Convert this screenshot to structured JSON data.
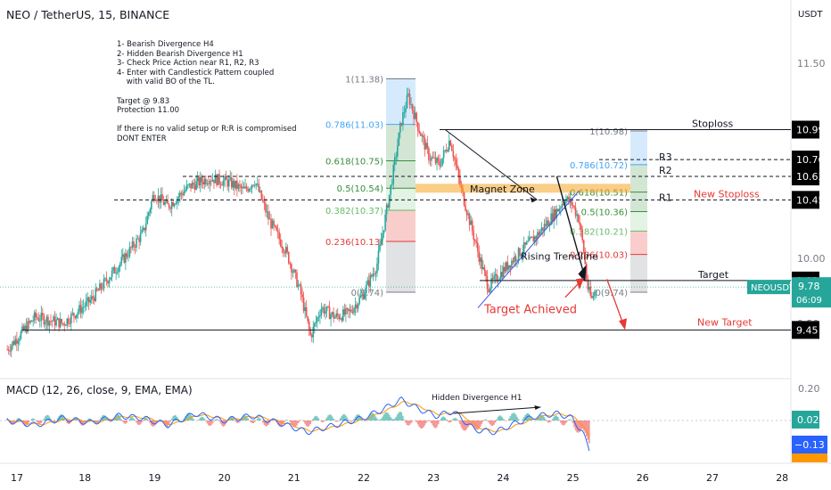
{
  "header": {
    "symbol_title": "NEO / TetherUS, 15, BINANCE",
    "currency": "USDT"
  },
  "notes": [
    "1- Bearish Divergence H4",
    "2- Hidden Bearish Divergence H1",
    "3- Check Price Action near R1, R2, R3",
    "4- Enter with Candlestick Pattern coupled",
    "    with valid BO of the TL.",
    "",
    "Target @ 9.83",
    "Protection 11.00",
    "",
    "If there is no valid setup or R:R is compromised",
    "DONT ENTER"
  ],
  "colors": {
    "up": "#26a69a",
    "down": "#ef5350",
    "fib_blue": "#42a5f5",
    "fib_green": "#388e3c",
    "fib_red": "#e53935",
    "magnet": "#f5a623",
    "trend_blue": "#3f51e5",
    "annotation_red": "#e53935"
  },
  "price_axis": {
    "labels": [
      "11.50",
      "10.00",
      "9.50"
    ],
    "boxes": [
      {
        "label": "10.99",
        "style": "dark"
      },
      {
        "label": "10.76",
        "style": "dark"
      },
      {
        "label": "10.63",
        "style": "dark"
      },
      {
        "label": "10.45",
        "style": "dark"
      },
      {
        "label": "9.83",
        "style": "dark"
      },
      {
        "label": "9.45",
        "style": "dark"
      }
    ],
    "current": {
      "symbol": "NEOUSDT",
      "price": "9.78",
      "countdown": "06:09"
    }
  },
  "levels": [
    {
      "name": "Stoploss",
      "value": 10.99,
      "style": "solid",
      "color": "dark"
    },
    {
      "name": "R3",
      "value": 10.76,
      "style": "dashed",
      "color": "dark"
    },
    {
      "name": "R2",
      "value": 10.63,
      "style": "dashed",
      "color": "dark"
    },
    {
      "name": "R1",
      "value": 10.45,
      "style": "dashed",
      "color": "dark"
    },
    {
      "name": "New Stoploss",
      "value": 10.45,
      "style": "label",
      "color": "red"
    },
    {
      "name": "Target",
      "value": 9.83,
      "style": "solid",
      "color": "dark"
    },
    {
      "name": "New Target",
      "value": 9.45,
      "style": "solid",
      "color": "red"
    }
  ],
  "fib_left": {
    "levels": [
      {
        "label": "1(11.38)",
        "value": 11.38,
        "color": "gray"
      },
      {
        "label": "0.786(11.03)",
        "value": 11.03,
        "color": "blue"
      },
      {
        "label": "0.618(10.75)",
        "value": 10.75,
        "color": "green"
      },
      {
        "label": "0.5(10.54)",
        "value": 10.54,
        "color": "green"
      },
      {
        "label": "0.382(10.37)",
        "value": 10.37,
        "color": "lightgreen"
      },
      {
        "label": "0.236(10.13)",
        "value": 10.13,
        "color": "red"
      },
      {
        "label": "0(9.74)",
        "value": 9.74,
        "color": "gray"
      }
    ]
  },
  "fib_right": {
    "levels": [
      {
        "label": "1(10.98)",
        "value": 10.98,
        "color": "gray"
      },
      {
        "label": "0.786(10.72)",
        "value": 10.72,
        "color": "blue"
      },
      {
        "label": "0.618(10.51)",
        "value": 10.51,
        "color": "green"
      },
      {
        "label": "0.5(10.36)",
        "value": 10.36,
        "color": "green"
      },
      {
        "label": "0.382(10.21)",
        "value": 10.21,
        "color": "lightgreen"
      },
      {
        "label": "0.236(10.03)",
        "value": 10.03,
        "color": "red"
      },
      {
        "label": "0(9.74)",
        "value": 9.74,
        "color": "gray"
      }
    ]
  },
  "annotations": {
    "magnet_zone": "Magnet Zone",
    "rising_trendline": "Rising Trendline",
    "target_achieved": "Target Achieved",
    "hidden_divergence": "Hidden Divergence H1"
  },
  "macd": {
    "title": "MACD (12, 26, close, 9, EMA, EMA)",
    "axis_label": "0.20",
    "box_hist": "0.02",
    "box_macd": "−0.13"
  },
  "chart_data": {
    "type": "candlestick",
    "title": "NEO / TetherUS, 15, BINANCE",
    "x_tick_labels": [
      "17",
      "18",
      "19",
      "20",
      "21",
      "22",
      "23",
      "24",
      "25",
      "26",
      "27",
      "28"
    ],
    "ylim": [
      9.3,
      11.6
    ],
    "price_path": [
      [
        16.9,
        9.3
      ],
      [
        17.3,
        9.55
      ],
      [
        17.7,
        9.5
      ],
      [
        18.1,
        9.68
      ],
      [
        18.5,
        9.95
      ],
      [
        18.85,
        10.2
      ],
      [
        19.0,
        10.5
      ],
      [
        19.2,
        10.4
      ],
      [
        19.5,
        10.55
      ],
      [
        19.8,
        10.62
      ],
      [
        20.1,
        10.58
      ],
      [
        20.3,
        10.52
      ],
      [
        20.45,
        10.6
      ],
      [
        20.65,
        10.3
      ],
      [
        20.9,
        10.05
      ],
      [
        21.1,
        9.75
      ],
      [
        21.25,
        9.4
      ],
      [
        21.4,
        9.62
      ],
      [
        21.6,
        9.55
      ],
      [
        21.8,
        9.58
      ],
      [
        22.0,
        9.72
      ],
      [
        22.2,
        9.95
      ],
      [
        22.4,
        10.55
      ],
      [
        22.55,
        11.05
      ],
      [
        22.65,
        11.25
      ],
      [
        22.8,
        11.0
      ],
      [
        22.95,
        10.78
      ],
      [
        23.1,
        10.72
      ],
      [
        23.25,
        10.92
      ],
      [
        23.4,
        10.55
      ],
      [
        23.55,
        10.25
      ],
      [
        23.7,
        9.95
      ],
      [
        23.8,
        9.78
      ],
      [
        24.0,
        9.9
      ],
      [
        24.2,
        10.02
      ],
      [
        24.35,
        10.1
      ],
      [
        24.5,
        10.18
      ],
      [
        24.65,
        10.28
      ],
      [
        24.8,
        10.38
      ],
      [
        24.9,
        10.46
      ],
      [
        25.0,
        10.42
      ],
      [
        25.1,
        10.3
      ],
      [
        25.17,
        10.05
      ],
      [
        25.22,
        9.78
      ],
      [
        25.28,
        9.68
      ],
      [
        25.35,
        9.78
      ]
    ],
    "macd_path": [
      [
        16.9,
        0.0
      ],
      [
        17.3,
        -0.02
      ],
      [
        17.7,
        0.01
      ],
      [
        18.1,
        -0.01
      ],
      [
        18.5,
        0.02
      ],
      [
        18.85,
        0.01
      ],
      [
        19.2,
        -0.02
      ],
      [
        19.6,
        0.03
      ],
      [
        20.0,
        0.0
      ],
      [
        20.4,
        0.02
      ],
      [
        20.8,
        -0.01
      ],
      [
        21.2,
        -0.05
      ],
      [
        21.6,
        -0.02
      ],
      [
        22.0,
        0.01
      ],
      [
        22.3,
        0.05
      ],
      [
        22.55,
        0.09
      ],
      [
        22.8,
        0.05
      ],
      [
        23.05,
        0.02
      ],
      [
        23.3,
        0.04
      ],
      [
        23.6,
        -0.04
      ],
      [
        23.9,
        -0.05
      ],
      [
        24.2,
        -0.01
      ],
      [
        24.5,
        0.02
      ],
      [
        24.8,
        0.03
      ],
      [
        25.0,
        0.01
      ],
      [
        25.15,
        -0.05
      ],
      [
        25.25,
        -0.13
      ]
    ]
  }
}
